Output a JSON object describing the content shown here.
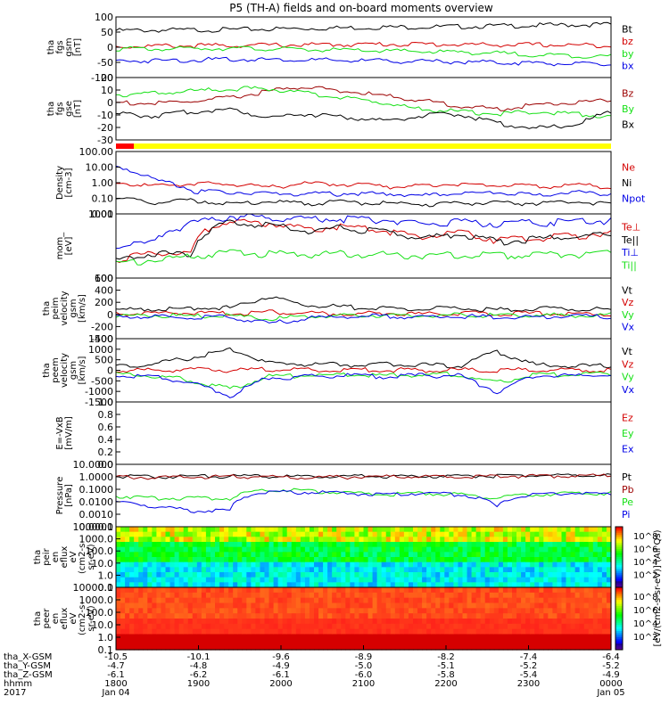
{
  "title": "P5 (TH-A) fields and on-board moments overview",
  "colors": {
    "black": "#000000",
    "red": "#d40000",
    "green": "#16e016",
    "blue": "#0000e6",
    "darkred": "#9c0000",
    "yellow": "#ffff00",
    "bar_red": "#ff0000"
  },
  "chart_data": [
    {
      "type": "line",
      "panel": "fgs_gsm",
      "ylabel": [
        "tha",
        "fgs",
        "gsm",
        "[nT]"
      ],
      "ylim": [
        -100,
        100
      ],
      "yticks": [
        "100",
        "50",
        "0",
        "-50",
        "-100"
      ],
      "series": [
        {
          "name": "Bt",
          "color": "black",
          "values": [
            55,
            56,
            57,
            58,
            60,
            62,
            64,
            66,
            67,
            68,
            70,
            72,
            74,
            75
          ]
        },
        {
          "name": "bz",
          "color": "red",
          "values": [
            2,
            4,
            5,
            6,
            7,
            8,
            9,
            10,
            10,
            9,
            8,
            8,
            7,
            6
          ]
        },
        {
          "name": "by",
          "color": "green",
          "values": [
            -5,
            -6,
            -4,
            -3,
            -5,
            -8,
            -10,
            -12,
            -14,
            -16,
            -20,
            -25,
            -28,
            -30
          ]
        },
        {
          "name": "bx",
          "color": "blue",
          "values": [
            -45,
            -44,
            -42,
            -40,
            -40,
            -42,
            -44,
            -45,
            -47,
            -48,
            -50,
            -52,
            -55,
            -58
          ]
        }
      ]
    },
    {
      "type": "line",
      "panel": "fgs_gse",
      "ylabel": [
        "tha",
        "fgs",
        "gse",
        "[nT]"
      ],
      "ylim": [
        -35,
        20
      ],
      "yticks": [
        "20",
        "10",
        "0",
        "-10",
        "-20",
        "-30"
      ],
      "series": [
        {
          "name": "Bz",
          "color": "darkred",
          "values": [
            -2,
            -3,
            -1,
            2,
            8,
            12,
            8,
            4,
            0,
            -5,
            -8,
            -4,
            -2,
            0
          ]
        },
        {
          "name": "By",
          "color": "green",
          "values": [
            5,
            6,
            8,
            10,
            10,
            6,
            2,
            -2,
            -8,
            -10,
            -12,
            -10,
            -12,
            -14
          ]
        },
        {
          "name": "Bx",
          "color": "black",
          "values": [
            -12,
            -14,
            -10,
            -8,
            -15,
            -12,
            -15,
            -18,
            -14,
            -12,
            -20,
            -25,
            -22,
            -10
          ]
        }
      ]
    },
    {
      "type": "line",
      "panel": "density",
      "ylabel": [
        "Density",
        "[cm-3]"
      ],
      "ylim": [
        0.01,
        100
      ],
      "scale": "log",
      "yticks": [
        "100.00",
        "10.00",
        "1.00",
        "0.10",
        "0.01"
      ],
      "series": [
        {
          "name": "Ne",
          "color": "red",
          "values": [
            1.0,
            0.6,
            0.9,
            0.8,
            0.5,
            0.9,
            0.8,
            0.6,
            0.6,
            0.9,
            0.7,
            0.6,
            0.7,
            0.6
          ]
        },
        {
          "name": "Ni",
          "color": "black",
          "values": [
            0.1,
            0.05,
            0.08,
            0.04,
            0.06,
            0.05,
            0.06,
            0.05,
            0.04,
            0.05,
            0.05,
            0.05,
            0.06,
            0.05
          ]
        },
        {
          "name": "Npot",
          "color": "blue",
          "values": [
            10,
            1.5,
            0.3,
            0.25,
            0.2,
            0.2,
            0.2,
            0.2,
            0.15,
            0.2,
            0.25,
            0.15,
            0.25,
            0.2
          ]
        }
      ]
    },
    {
      "type": "line",
      "panel": "temperature",
      "ylabel": [
        "mom_",
        "[eV]"
      ],
      "ylim": [
        10,
        5000
      ],
      "scale": "log",
      "yticks": [
        "1000",
        "100"
      ],
      "series": [
        {
          "name": "Te⊥",
          "color": "red",
          "values": [
            60,
            120,
            100,
            2500,
            2000,
            1200,
            1500,
            1000,
            500,
            800,
            400,
            500,
            600,
            800
          ]
        },
        {
          "name": "Te||",
          "color": "black",
          "values": [
            50,
            110,
            90,
            2200,
            1800,
            1000,
            1300,
            900,
            450,
            700,
            350,
            450,
            550,
            700
          ]
        },
        {
          "name": "Ti⊥",
          "color": "blue",
          "values": [
            200,
            300,
            2000,
            4000,
            3500,
            3000,
            3200,
            2800,
            2000,
            2500,
            2000,
            2200,
            2400,
            2600
          ]
        },
        {
          "name": "Ti||",
          "color": "green",
          "values": [
            40,
            60,
            80,
            120,
            110,
            100,
            110,
            100,
            90,
            100,
            90,
            95,
            100,
            110
          ]
        }
      ]
    },
    {
      "type": "line",
      "panel": "peim_velocity",
      "ylabel": [
        "tha",
        "peim",
        "velocity",
        "gsm",
        "[km/s]"
      ],
      "ylim": [
        -400,
        600
      ],
      "yticks": [
        "600",
        "400",
        "200",
        "0",
        "-200",
        "-400"
      ],
      "series": [
        {
          "name": "Vt",
          "color": "black",
          "values": [
            80,
            90,
            100,
            110,
            300,
            150,
            120,
            100,
            90,
            100,
            80,
            100,
            90,
            80
          ]
        },
        {
          "name": "Vz",
          "color": "red",
          "values": [
            10,
            20,
            30,
            10,
            40,
            20,
            10,
            20,
            10,
            20,
            10,
            20,
            10,
            10
          ]
        },
        {
          "name": "Vy",
          "color": "green",
          "values": [
            -20,
            -10,
            -30,
            -20,
            -80,
            -30,
            -20,
            -10,
            -20,
            -10,
            -20,
            -10,
            -20,
            -10
          ]
        },
        {
          "name": "Vx",
          "color": "blue",
          "values": [
            -30,
            -40,
            -50,
            -40,
            -150,
            -60,
            -40,
            -30,
            -40,
            -30,
            -50,
            -40,
            -30,
            -40
          ]
        }
      ]
    },
    {
      "type": "line",
      "panel": "peem_velocity",
      "ylabel": [
        "tha",
        "peem",
        "velocity",
        "gsm",
        "[km/s]"
      ],
      "ylim": [
        -1500,
        1500
      ],
      "yticks": [
        "1500",
        "1000",
        "500",
        "0",
        "-500",
        "-1000",
        "-1500"
      ],
      "series": [
        {
          "name": "Vt",
          "color": "black",
          "values": [
            200,
            300,
            600,
            1000,
            350,
            300,
            250,
            300,
            250,
            200,
            900,
            250,
            200,
            200
          ]
        },
        {
          "name": "Vz",
          "color": "red",
          "values": [
            0,
            10,
            20,
            10,
            20,
            10,
            10,
            10,
            10,
            10,
            20,
            10,
            10,
            10
          ]
        },
        {
          "name": "Vy",
          "color": "green",
          "values": [
            -200,
            -250,
            -500,
            -900,
            -300,
            -250,
            -200,
            -250,
            -200,
            -200,
            -600,
            -200,
            -200,
            -200
          ]
        },
        {
          "name": "Vx",
          "color": "blue",
          "values": [
            -250,
            -300,
            -600,
            -1200,
            -350,
            -300,
            -250,
            -300,
            -250,
            -250,
            -1000,
            -250,
            -250,
            -250
          ]
        }
      ]
    },
    {
      "type": "line",
      "panel": "efield",
      "ylabel": [
        "E=-VxB",
        "[mV/m]"
      ],
      "ylim": [
        0,
        1
      ],
      "yticks": [
        "1.0",
        "0.8",
        "0.6",
        "0.4",
        "0.2",
        "0.0"
      ],
      "series": [
        {
          "name": "Ez",
          "color": "red",
          "values": []
        },
        {
          "name": "Ey",
          "color": "green",
          "values": []
        },
        {
          "name": "Ex",
          "color": "blue",
          "values": []
        }
      ]
    },
    {
      "type": "line",
      "panel": "pressure",
      "ylabel": [
        "Pressure",
        "[nPa]"
      ],
      "ylim": [
        0.0001,
        10
      ],
      "scale": "log",
      "yticks": [
        "10.0000",
        "1.0000",
        "0.1000",
        "0.0100",
        "0.0010",
        "0.0001"
      ],
      "series": [
        {
          "name": "Pt",
          "color": "black",
          "values": [
            1.2,
            1.0,
            1.1,
            1.2,
            1.1,
            1.0,
            1.1,
            1.2,
            1.1,
            1.2,
            1.2,
            1.3,
            1.3,
            1.4
          ]
        },
        {
          "name": "Pb",
          "color": "darkred",
          "values": [
            1.0,
            0.9,
            1.0,
            1.1,
            1.0,
            0.9,
            1.0,
            1.1,
            1.0,
            1.1,
            1.1,
            1.2,
            1.2,
            1.3
          ]
        },
        {
          "name": "Pe",
          "color": "green",
          "values": [
            0.03,
            0.02,
            0.02,
            0.02,
            0.1,
            0.08,
            0.05,
            0.04,
            0.05,
            0.04,
            0.02,
            0.04,
            0.05,
            0.05
          ]
        },
        {
          "name": "Pi",
          "color": "blue",
          "values": [
            0.01,
            0.004,
            0.002,
            0.002,
            0.06,
            0.06,
            0.05,
            0.04,
            0.05,
            0.04,
            0.003,
            0.04,
            0.05,
            0.04
          ]
        }
      ]
    },
    {
      "type": "heatmap",
      "panel": "peir_en_eflux",
      "ylabel": [
        "tha",
        "peir",
        "en",
        "eflux",
        "eV",
        "(cm2-s-",
        "sr-eV)"
      ],
      "yticks": [
        "10000.0",
        "1000.0",
        "100.0",
        "10.0",
        "1.0",
        "0.1"
      ],
      "colorbar": {
        "label": "[eV/(cm2-s-sr-eV)] (All Qs)",
        "ticks": [
          "10^8",
          "10^6",
          "10^4",
          "10^2"
        ]
      }
    },
    {
      "type": "heatmap",
      "panel": "peer_en_eflux",
      "ylabel": [
        "tha",
        "peer",
        "en",
        "eflux",
        "eV",
        "(cm2-s-",
        "sr-eV)"
      ],
      "yticks": [
        "10000.0",
        "1000.0",
        "100.0",
        "10.0",
        "1.0",
        "0.1"
      ],
      "colorbar": {
        "label": "[eV/(cm2-s-sr-eV)] (All Qs)",
        "ticks": [
          "10^8",
          "10^6",
          "10^4",
          "10^2"
        ]
      }
    }
  ],
  "xaxis": {
    "rows": [
      {
        "label": "tha_X-GSM",
        "ticks": [
          "-10.5",
          "-10.1",
          "-9.6",
          "-8.9",
          "-8.2",
          "-7.4",
          "-6.4"
        ]
      },
      {
        "label": "tha_Y-GSM",
        "ticks": [
          "-4.7",
          "-4.8",
          "-4.9",
          "-5.0",
          "-5.1",
          "-5.2",
          "-5.2"
        ]
      },
      {
        "label": "tha_Z-GSM",
        "ticks": [
          "-6.1",
          "-6.2",
          "-6.1",
          "-6.0",
          "-5.8",
          "-5.4",
          "-4.9"
        ]
      },
      {
        "label": "hhmm",
        "ticks": [
          "1800",
          "1900",
          "2000",
          "2100",
          "2200",
          "2300",
          "0000"
        ]
      },
      {
        "label": "2017",
        "ticks": [
          "Jan 04",
          "",
          "",
          "",
          "",
          "",
          "Jan 05"
        ]
      }
    ]
  }
}
